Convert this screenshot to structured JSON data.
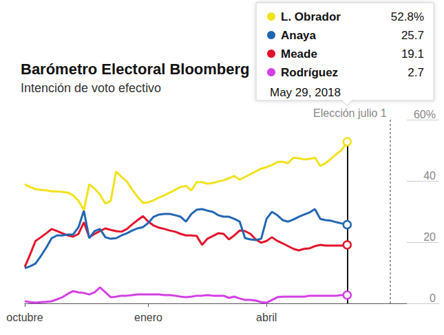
{
  "chart_data": {
    "type": "line",
    "title": "Barómetro Electoral Bloomberg",
    "subtitle": "Intención de voto efectivo",
    "categories": [
      "octubre",
      null,
      null,
      null,
      null,
      null,
      null,
      null,
      null,
      null,
      null,
      null,
      null,
      null,
      null,
      null,
      null,
      null,
      null,
      null,
      null,
      null,
      null,
      "enero",
      null,
      null,
      null,
      null,
      null,
      null,
      null,
      null,
      null,
      null,
      null,
      null,
      null,
      null,
      null,
      null,
      null,
      null,
      null,
      null,
      null,
      "abril",
      null,
      null,
      null,
      null,
      null,
      null,
      null,
      null,
      null,
      null,
      null,
      null,
      null,
      null,
      null,
      null,
      null,
      null,
      null,
      null,
      null,
      null,
      null,
      null,
      null,
      null,
      null,
      null,
      null,
      null,
      null,
      null
    ],
    "series": [
      {
        "name": "L. Obrador",
        "color": "#f2e21a",
        "values": [
          38.9,
          38.0,
          37.3,
          37.1,
          36.9,
          36.6,
          36.6,
          36.4,
          36.2,
          35.3,
          33.5,
          30.5,
          38.9,
          37.5,
          35.5,
          32.6,
          33.5,
          43.1,
          41.3,
          39.8,
          37.1,
          34.8,
          32.8,
          33.0,
          33.7,
          34.6,
          35.3,
          36.2,
          37.1,
          38.0,
          38.4,
          36.9,
          39.6,
          39.6,
          39.1,
          39.3,
          39.8,
          40.2,
          40.9,
          41.6,
          40.4,
          41.3,
          42.2,
          43.1,
          44.0,
          44.5,
          45.2,
          46.1,
          46.3,
          45.8,
          47.6,
          47.4,
          47.0,
          47.2,
          47.6,
          44.9,
          45.8,
          47.2,
          48.8,
          50.1,
          52.8,
          null,
          null,
          null,
          null,
          null,
          null,
          null,
          null,
          null,
          null,
          null,
          null,
          null,
          null,
          null,
          null,
          null
        ]
      },
      {
        "name": "Anaya",
        "color": "#2266b3",
        "values": [
          11.5,
          12.1,
          13.0,
          15.5,
          18.2,
          21.3,
          22.2,
          22.2,
          22.5,
          22.5,
          24.9,
          30.3,
          21.3,
          23.6,
          24.3,
          21.6,
          21.1,
          21.3,
          22.2,
          22.9,
          23.8,
          24.5,
          24.9,
          26.3,
          28.3,
          29.0,
          29.2,
          29.2,
          28.8,
          28.3,
          26.7,
          29.2,
          30.6,
          30.8,
          30.3,
          29.9,
          28.8,
          28.3,
          28.3,
          27.6,
          26.7,
          21.3,
          20.9,
          20.7,
          21.1,
          27.6,
          29.9,
          28.8,
          27.2,
          26.7,
          27.4,
          28.3,
          29.0,
          29.7,
          30.8,
          27.6,
          27.2,
          27.0,
          26.5,
          26.1,
          25.7,
          null,
          null,
          null,
          null,
          null,
          null,
          null,
          null,
          null,
          null,
          null,
          null,
          null,
          null,
          null,
          null,
          null
        ]
      },
      {
        "name": "Meade",
        "color": "#e3132c",
        "values": [
          11.9,
          16.0,
          20.4,
          21.6,
          22.9,
          24.3,
          23.6,
          22.9,
          22.2,
          21.8,
          22.7,
          26.5,
          21.6,
          22.7,
          23.6,
          24.5,
          24.0,
          23.6,
          23.4,
          24.3,
          25.8,
          27.2,
          28.5,
          26.7,
          25.4,
          24.7,
          24.3,
          23.8,
          23.4,
          22.7,
          22.2,
          22.2,
          22.0,
          19.1,
          21.1,
          22.0,
          22.9,
          22.7,
          20.9,
          22.2,
          23.8,
          23.6,
          22.7,
          20.9,
          19.8,
          20.4,
          21.6,
          20.4,
          19.6,
          18.7,
          17.8,
          17.3,
          17.8,
          18.0,
          18.7,
          19.1,
          18.9,
          18.9,
          18.9,
          18.9,
          19.1,
          null,
          null,
          null,
          null,
          null,
          null,
          null,
          null,
          null,
          null,
          null,
          null,
          null,
          null,
          null,
          null,
          null
        ]
      },
      {
        "name": "Rodríguez",
        "color": "#d43fe6",
        "values": [
          0.7,
          0.4,
          0.2,
          0.4,
          0.5,
          0.7,
          1.3,
          2.0,
          3.1,
          4.0,
          3.6,
          3.4,
          2.9,
          3.6,
          5.2,
          3.6,
          2.0,
          2.2,
          2.5,
          2.5,
          2.7,
          2.9,
          2.9,
          2.9,
          2.9,
          2.9,
          2.7,
          2.7,
          2.5,
          2.2,
          2.0,
          2.2,
          2.5,
          2.5,
          2.7,
          2.5,
          2.5,
          2.5,
          1.8,
          2.2,
          1.6,
          1.1,
          1.1,
          0.9,
          0.4,
          0.2,
          1.1,
          2.0,
          2.2,
          2.2,
          2.2,
          2.2,
          2.2,
          2.5,
          2.5,
          2.5,
          2.5,
          2.5,
          2.5,
          2.7,
          2.7,
          null,
          null,
          null,
          null,
          null,
          null,
          null,
          null,
          null,
          null,
          null,
          null,
          null,
          null,
          null,
          null,
          null
        ]
      }
    ],
    "ylim": [
      0,
      60
    ],
    "yticks": [
      0,
      20,
      40,
      {
        "value": 60,
        "label": "60%"
      }
    ],
    "grid": false,
    "annotations": [
      {
        "text": "Elección julio 1",
        "x": 68
      }
    ],
    "tooltip": {
      "date": "May 29, 2018",
      "labels": [
        "52.8%",
        "25.7",
        "19.1",
        "2.7"
      ]
    }
  }
}
